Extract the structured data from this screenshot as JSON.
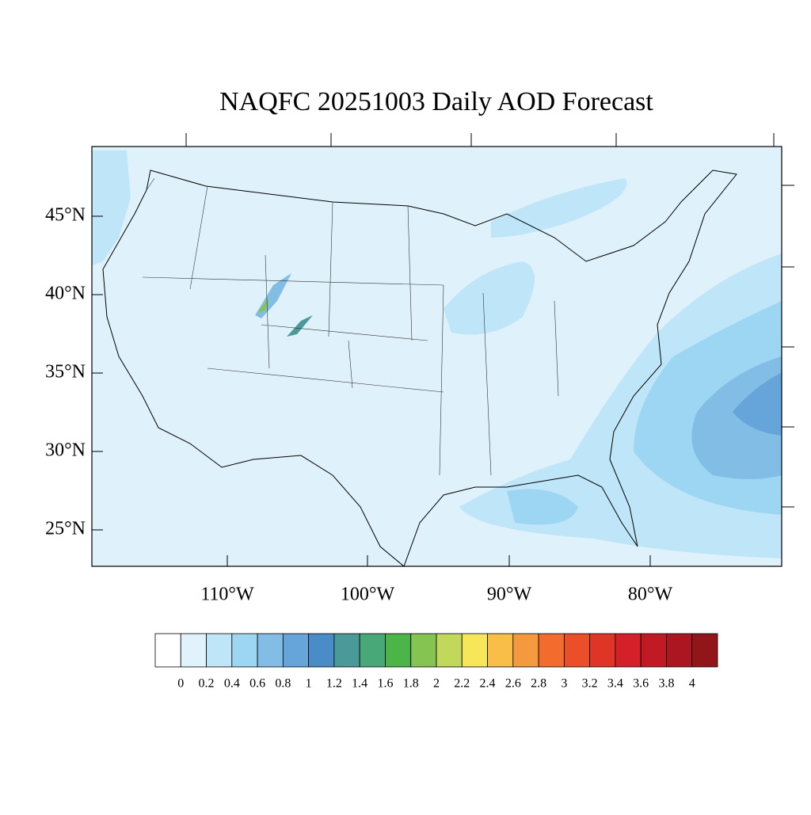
{
  "title": "NAQFC 20251003 Daily AOD Forecast",
  "map": {
    "lat_labels": [
      "45°N",
      "40°N",
      "35°N",
      "30°N",
      "25°N"
    ],
    "lon_labels": [
      "110°W",
      "100°W",
      "90°W",
      "80°W"
    ]
  },
  "colorbar": {
    "levels": [
      0,
      0.2,
      0.4,
      0.6,
      0.8,
      1,
      1.2,
      1.4,
      1.6,
      1.8,
      2,
      2.2,
      2.4,
      2.6,
      2.8,
      3,
      3.2,
      3.4,
      3.6,
      3.8,
      4
    ],
    "colors": [
      "#ffffff",
      "#e0f3fb",
      "#bfe6f8",
      "#9dd6f3",
      "#82bde6",
      "#66a5da",
      "#4a8cc8",
      "#4a9a9a",
      "#48a877",
      "#4bb547",
      "#86c451",
      "#c2d85a",
      "#f7e55a",
      "#f8be48",
      "#f5993e",
      "#f26d2d",
      "#ea4f2a",
      "#e03426",
      "#d5202a",
      "#c11a24",
      "#ab1720",
      "#911519"
    ]
  }
}
